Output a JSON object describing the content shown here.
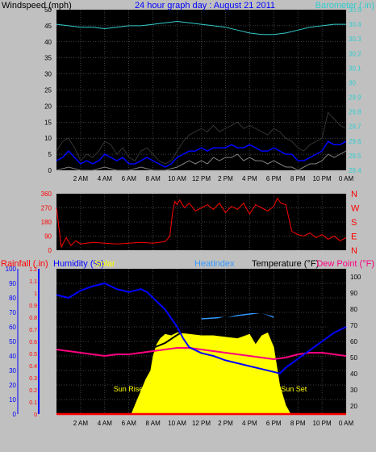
{
  "colors": {
    "background": "#c0c0c0",
    "plot_bg": "#000000",
    "wind_gust": "#000000",
    "wind_avg": "#0000ff",
    "wind_min": "#808080",
    "barometer": "#33cccc",
    "direction": "#ff0000",
    "humidity": "#0000ff",
    "temperature": "#000000",
    "dew_point": "#ff0080",
    "heat_index": "#3399ff",
    "solar": "#ffff00",
    "rainfall": "#ff0000",
    "grid": "#808080"
  },
  "chart_data": [
    {
      "id": "wind",
      "type": "line",
      "title": "24 hour graph day : August 21 2011",
      "left_label": "Windspeed (mph)",
      "right_label": "Barometer (.in)",
      "x_ticks": [
        "2 AM",
        "4 AM",
        "6 AM",
        "8 AM",
        "10 AM",
        "12 PM",
        "2 PM",
        "4 PM",
        "6 PM",
        "8 PM",
        "10 PM",
        "0 AM"
      ],
      "x_range": [
        0,
        24
      ],
      "y_left_range": [
        0,
        50
      ],
      "y_left_ticks": [
        "0",
        "5",
        "10",
        "15",
        "20",
        "25",
        "30",
        "35",
        "40",
        "45",
        "50"
      ],
      "y_right_range": [
        29.4,
        30.5
      ],
      "y_right_ticks": [
        "29.4",
        "29.5",
        "29.6",
        "29.7",
        "29.8",
        "29.9",
        "30",
        "30.1",
        "30.2",
        "30.3",
        "30.4",
        "30.5"
      ],
      "grid": true,
      "series": [
        {
          "key": "gust",
          "axis": "left",
          "x": [
            0,
            0.5,
            1,
            1.5,
            2,
            2.5,
            3,
            3.5,
            4,
            4.5,
            5,
            5.5,
            6,
            6.5,
            7,
            7.5,
            8,
            8.5,
            9,
            9.5,
            10,
            10.5,
            11,
            11.5,
            12,
            12.5,
            13,
            13.5,
            14,
            14.5,
            15,
            15.5,
            16,
            16.5,
            17,
            17.5,
            18,
            18.5,
            19,
            19.5,
            20,
            20.5,
            21,
            21.5,
            22,
            22.5,
            23,
            23.5,
            24
          ],
          "values": [
            6,
            9,
            10,
            7,
            3,
            5,
            4,
            6,
            9,
            8,
            5,
            7,
            4,
            3,
            6,
            7,
            5,
            3,
            2,
            3,
            6,
            9,
            11,
            12,
            13,
            12,
            14,
            12,
            13,
            14,
            15,
            13,
            14,
            13,
            12,
            11,
            13,
            12,
            10,
            9,
            7,
            6,
            8,
            9,
            10,
            18,
            16,
            14,
            13
          ]
        },
        {
          "key": "avg",
          "axis": "left",
          "x": [
            0,
            0.5,
            1,
            1.5,
            2,
            2.5,
            3,
            3.5,
            4,
            4.5,
            5,
            5.5,
            6,
            6.5,
            7,
            7.5,
            8,
            8.5,
            9,
            9.5,
            10,
            10.5,
            11,
            11.5,
            12,
            12.5,
            13,
            13.5,
            14,
            14.5,
            15,
            15.5,
            16,
            16.5,
            17,
            17.5,
            18,
            18.5,
            19,
            19.5,
            20,
            20.5,
            21,
            21.5,
            22,
            22.5,
            23,
            23.5,
            24
          ],
          "values": [
            3,
            4,
            6,
            4,
            2,
            3,
            2,
            3,
            5,
            4,
            3,
            4,
            2,
            2,
            3,
            4,
            3,
            2,
            1,
            2,
            4,
            5,
            6,
            6,
            7,
            6,
            7,
            7,
            7,
            8,
            7,
            7,
            8,
            7,
            6,
            6,
            7,
            6,
            5,
            5,
            3,
            3,
            4,
            5,
            6,
            9,
            8,
            8,
            9
          ]
        },
        {
          "key": "min",
          "axis": "left",
          "x": [
            0,
            1,
            2,
            3,
            4,
            5,
            6,
            7,
            8,
            9,
            10,
            10.5,
            11,
            11.5,
            12,
            12.5,
            13,
            13.5,
            14,
            14.5,
            15,
            15.5,
            16,
            16.5,
            17,
            17.5,
            18,
            18.5,
            19,
            19.5,
            20,
            20.5,
            21,
            21.5,
            22,
            22.5,
            23,
            23.5,
            24
          ],
          "values": [
            0,
            1,
            0,
            0,
            1,
            0,
            0,
            1,
            0,
            0,
            1,
            2,
            3,
            2,
            3,
            2,
            4,
            3,
            4,
            4,
            5,
            3,
            4,
            3,
            3,
            2,
            3,
            2,
            1,
            1,
            0,
            1,
            2,
            2,
            3,
            5,
            4,
            5,
            6
          ]
        },
        {
          "key": "barometer",
          "axis": "right",
          "x": [
            0,
            1,
            2,
            3,
            4,
            5,
            6,
            7,
            8,
            9,
            10,
            11,
            12,
            13,
            14,
            15,
            16,
            17,
            18,
            19,
            20,
            21,
            22,
            23,
            24
          ],
          "values": [
            30.4,
            30.39,
            30.38,
            30.38,
            30.37,
            30.38,
            30.39,
            30.39,
            30.4,
            30.41,
            30.42,
            30.41,
            30.4,
            30.39,
            30.38,
            30.36,
            30.34,
            30.33,
            30.33,
            30.34,
            30.36,
            30.38,
            30.39,
            30.4,
            30.4
          ]
        }
      ]
    },
    {
      "id": "direction",
      "type": "line",
      "x_range": [
        0,
        24
      ],
      "y_range": [
        0,
        360
      ],
      "y_ticks": [
        "0",
        "90",
        "180",
        "270",
        "360"
      ],
      "compass": [
        "N",
        "E",
        "S",
        "W",
        "N"
      ],
      "grid": true,
      "series": [
        {
          "key": "direction",
          "x": [
            0,
            0.4,
            0.8,
            1.2,
            1.6,
            2,
            3,
            4,
            5,
            6,
            7,
            8,
            8.5,
            9,
            9.4,
            9.6,
            9.8,
            10,
            10.2,
            10.6,
            11,
            11.5,
            12,
            12.5,
            13,
            13.5,
            14,
            14.5,
            15,
            15.5,
            16,
            16.5,
            17,
            17.5,
            18,
            18.3,
            18.6,
            19,
            19.5,
            20,
            20.5,
            21,
            21.5,
            22,
            22.5,
            23,
            23.5,
            24
          ],
          "values": [
            270,
            20,
            80,
            30,
            60,
            40,
            50,
            45,
            40,
            45,
            50,
            45,
            50,
            55,
            90,
            230,
            310,
            290,
            320,
            270,
            300,
            250,
            270,
            290,
            260,
            300,
            240,
            280,
            260,
            300,
            230,
            290,
            270,
            250,
            280,
            330,
            300,
            290,
            120,
            100,
            90,
            110,
            80,
            100,
            70,
            90,
            60,
            80
          ]
        }
      ]
    },
    {
      "id": "thermo",
      "type": "area",
      "labels": {
        "rainfall": "Rainfall (.in)",
        "humidity": "Humidity (%)",
        "solar": "Solar",
        "heatindex": "Heatindex",
        "temperature": "Temperature (°F)",
        "dewpoint": "Dew Point (°F)",
        "sunrise": "Sun Rise",
        "sunset": "Sun Set"
      },
      "x_range": [
        0,
        24
      ],
      "humidity_range": [
        0,
        100
      ],
      "humidity_ticks": [
        "0",
        "10",
        "20",
        "30",
        "40",
        "50",
        "60",
        "70",
        "80",
        "90",
        "100"
      ],
      "rain_range": [
        0,
        1.2
      ],
      "rain_ticks": [
        "0",
        "0.1",
        "0.2",
        "0.3",
        "0.4",
        "0.5",
        "0.6",
        "0.7",
        "0.8",
        "0.9",
        "1",
        "1.1",
        "1.2"
      ],
      "temp_range": [
        15,
        105
      ],
      "temp_ticks": [
        "20",
        "30",
        "40",
        "50",
        "60",
        "70",
        "80",
        "90",
        "100"
      ],
      "sunrise_hour": 6.2,
      "sunset_hour": 19.4,
      "grid": true,
      "series": [
        {
          "key": "humidity",
          "axis": "humidity",
          "x": [
            0,
            1,
            2,
            3,
            4,
            5,
            5.5,
            6,
            7,
            7.5,
            8,
            9,
            10,
            10.5,
            11,
            12,
            13,
            14,
            15,
            16,
            17,
            18,
            18.5,
            19,
            20,
            21,
            22,
            23,
            24
          ],
          "values": [
            82,
            80,
            85,
            88,
            90,
            86,
            85,
            84,
            86,
            84,
            80,
            72,
            60,
            52,
            46,
            42,
            40,
            37,
            35,
            33,
            31,
            29,
            28,
            32,
            38,
            44,
            50,
            56,
            60
          ]
        },
        {
          "key": "temperature",
          "axis": "temp",
          "x": [
            0,
            1,
            2,
            3,
            4,
            5,
            6,
            7,
            8,
            9,
            10,
            11,
            12,
            13,
            14,
            15,
            16,
            17,
            18,
            19,
            20,
            21,
            22,
            23,
            24
          ],
          "values": [
            64,
            63,
            62,
            60,
            57,
            55,
            54,
            55,
            56,
            59,
            64,
            68,
            71,
            73,
            75,
            77,
            78,
            78,
            76,
            74,
            72,
            71,
            70,
            69,
            69
          ]
        },
        {
          "key": "heatindex",
          "axis": "temp",
          "x": [
            12,
            14,
            16,
            17,
            18
          ],
          "values": [
            74,
            75,
            77,
            78,
            75
          ]
        },
        {
          "key": "dewpoint",
          "axis": "temp",
          "x": [
            0,
            1,
            2,
            3,
            4,
            5,
            6,
            7,
            8,
            9,
            10,
            11,
            12,
            13,
            14,
            15,
            16,
            17,
            18,
            19,
            20,
            21,
            22,
            23,
            24
          ],
          "values": [
            55,
            54,
            53,
            52,
            51,
            52,
            52,
            53,
            54,
            55,
            56,
            56,
            55,
            54,
            53,
            52,
            51,
            50,
            49,
            50,
            52,
            53,
            53,
            52,
            51
          ]
        },
        {
          "key": "solar",
          "axis": "humidity",
          "x": [
            6.2,
            6.6,
            7,
            7.4,
            7.8,
            8,
            8.3,
            8.6,
            9,
            9.5,
            10,
            11,
            12,
            13,
            14,
            15,
            16,
            16.5,
            17,
            17.5,
            18,
            18.5,
            19,
            19.4
          ],
          "values": [
            0,
            8,
            16,
            24,
            30,
            40,
            48,
            52,
            55,
            54,
            56,
            55,
            54,
            54,
            53,
            52,
            55,
            48,
            54,
            56,
            46,
            20,
            6,
            0
          ]
        },
        {
          "key": "rainfall",
          "axis": "rain",
          "x": [
            0,
            24
          ],
          "values": [
            0,
            0
          ]
        }
      ]
    }
  ]
}
